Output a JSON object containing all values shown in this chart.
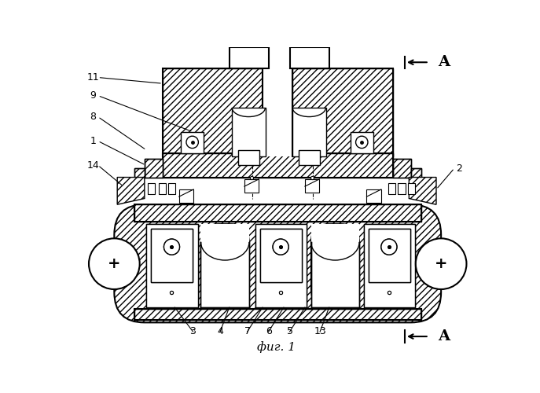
{
  "bg_color": "#ffffff",
  "line_color": "#000000",
  "title": "фиг. 1",
  "fig_width": 6.87,
  "fig_height": 5.0
}
